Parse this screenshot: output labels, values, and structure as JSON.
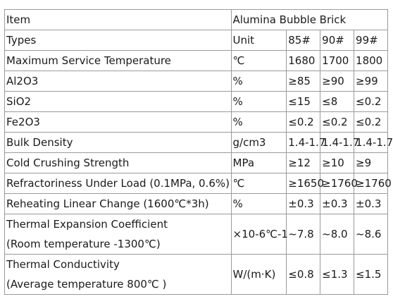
{
  "table": {
    "header": {
      "item_label": "Item",
      "product_name": "Alumina Bubble Brick"
    },
    "types_row": {
      "label": "Types",
      "unit": "Unit",
      "grades": [
        "85#",
        "90#",
        "99#"
      ]
    },
    "rows": [
      {
        "property": "Maximum Service Temperature",
        "unit": "℃",
        "values": [
          "1680",
          "1700",
          "1800"
        ]
      },
      {
        "property": "Al2O3",
        "unit": "%",
        "values": [
          "≥85",
          "≥90",
          "≥99"
        ]
      },
      {
        "property": "SiO2",
        "unit": "%",
        "values": [
          "≤15",
          "≤8",
          "≤0.2"
        ]
      },
      {
        "property": "Fe2O3",
        "unit": "%",
        "values": [
          "≤0.2",
          "≤0.2",
          "≤0.2"
        ]
      },
      {
        "property": "Bulk Density",
        "unit": "g/cm3",
        "values": [
          "1.4-1.7",
          "1.4-1.7",
          "1.4-1.7"
        ]
      },
      {
        "property": "Cold Crushing Strength",
        "unit": "MPa",
        "values": [
          "≥12",
          "≥10",
          "≥9"
        ]
      },
      {
        "property": "Refractoriness Under Load (0.1MPa, 0.6%)",
        "unit": "℃",
        "values": [
          "≥1650",
          "≥1760",
          "≥1760"
        ]
      },
      {
        "property": "Reheating Linear Change (1600℃*3h)",
        "unit": "%",
        "values": [
          "±0.3",
          "±0.3",
          "±0.3"
        ]
      },
      {
        "property": "Thermal Expansion Coefficient",
        "property_line2": "(Room temperature -1300℃)",
        "unit": "×10-6℃-1",
        "values": [
          "~7.8",
          "~8.0",
          "~8.6"
        ]
      },
      {
        "property": "Thermal Conductivity",
        "property_line2": "(Average temperature 800℃ )",
        "unit": "W/(m·K)",
        "values": [
          "≤0.8",
          "≤1.3",
          "≤1.5"
        ]
      }
    ]
  }
}
